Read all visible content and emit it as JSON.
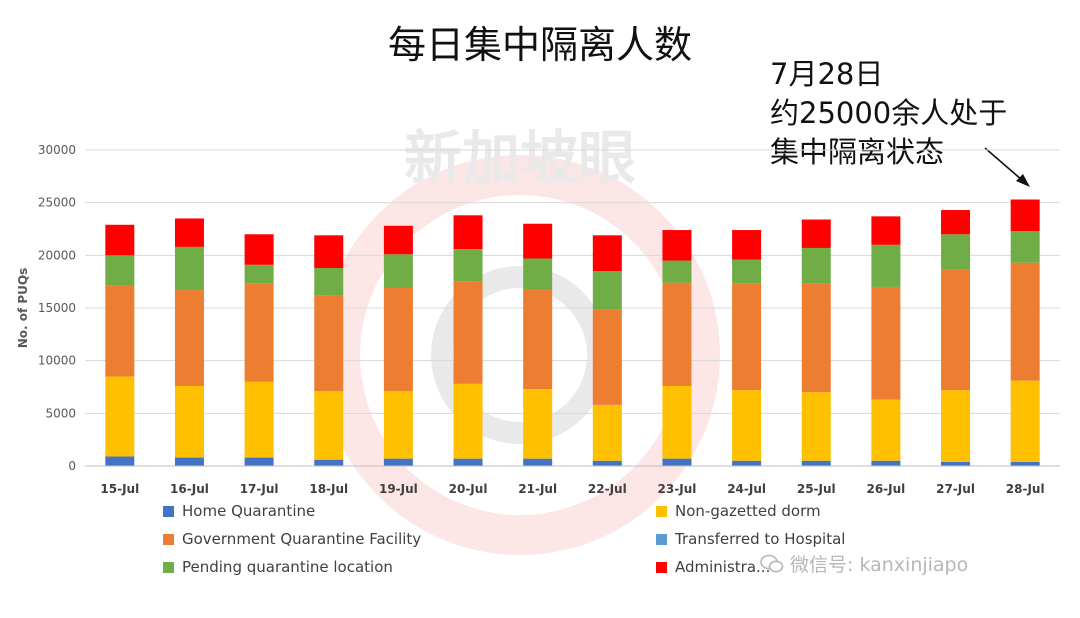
{
  "annotation_lines": [
    "7月28日",
    "约25000余人处于",
    "集中隔离状态"
  ],
  "logo_text": "新加坡眼",
  "watermark_text": "微信号: kanxinjiapo",
  "colors": {
    "Home Quarantine": "#4472C4",
    "Government Quarantine Facility": "#ED7D31",
    "Pending quarantine location": "#70AD47",
    "Non-gazetted dorm": "#FFC000",
    "Transferred to Hospital": "#5B9BD5",
    "Administra...": "#FF0000"
  },
  "chart_data": {
    "type": "bar",
    "stacked": true,
    "title": "每日集中隔离人数",
    "xlabel": "",
    "ylabel": "No. of PUQs",
    "ylim": [
      0,
      30000
    ],
    "yticks": [
      0,
      5000,
      10000,
      15000,
      20000,
      25000,
      30000
    ],
    "grid": true,
    "legend_position": "bottom",
    "categories": [
      "15-Jul",
      "16-Jul",
      "17-Jul",
      "18-Jul",
      "19-Jul",
      "20-Jul",
      "21-Jul",
      "22-Jul",
      "23-Jul",
      "24-Jul",
      "25-Jul",
      "26-Jul",
      "27-Jul",
      "28-Jul"
    ],
    "series": [
      {
        "name": "Home Quarantine",
        "values": [
          900,
          800,
          800,
          600,
          700,
          700,
          700,
          500,
          700,
          500,
          500,
          500,
          400,
          400
        ]
      },
      {
        "name": "Non-gazetted dorm",
        "values": [
          7600,
          6800,
          7200,
          6500,
          6400,
          7100,
          6600,
          5300,
          6900,
          6700,
          6500,
          5800,
          6800,
          7700
        ]
      },
      {
        "name": "Government Quarantine Facility",
        "values": [
          8600,
          9100,
          9300,
          9100,
          9800,
          9700,
          9500,
          9100,
          9800,
          10100,
          10300,
          10700,
          11500,
          11200
        ]
      },
      {
        "name": "Pending quarantine location",
        "values": [
          2900,
          4100,
          1800,
          2600,
          3200,
          3100,
          2900,
          3600,
          2100,
          2300,
          3400,
          4000,
          3300,
          3000
        ]
      },
      {
        "name": "Transferred to Hospital",
        "values": [
          0,
          0,
          0,
          0,
          0,
          0,
          0,
          0,
          0,
          0,
          0,
          0,
          0,
          0
        ]
      },
      {
        "name": "Administra...",
        "values": [
          2900,
          2700,
          2900,
          3100,
          2700,
          3200,
          3300,
          3400,
          2900,
          2800,
          2700,
          2700,
          2300,
          3000
        ]
      }
    ],
    "legend_layout": [
      [
        "Home Quarantine",
        "Non-gazetted dorm"
      ],
      [
        "Government Quarantine Facility",
        "Transferred to Hospital"
      ],
      [
        "Pending quarantine location",
        "Administra..."
      ]
    ]
  }
}
